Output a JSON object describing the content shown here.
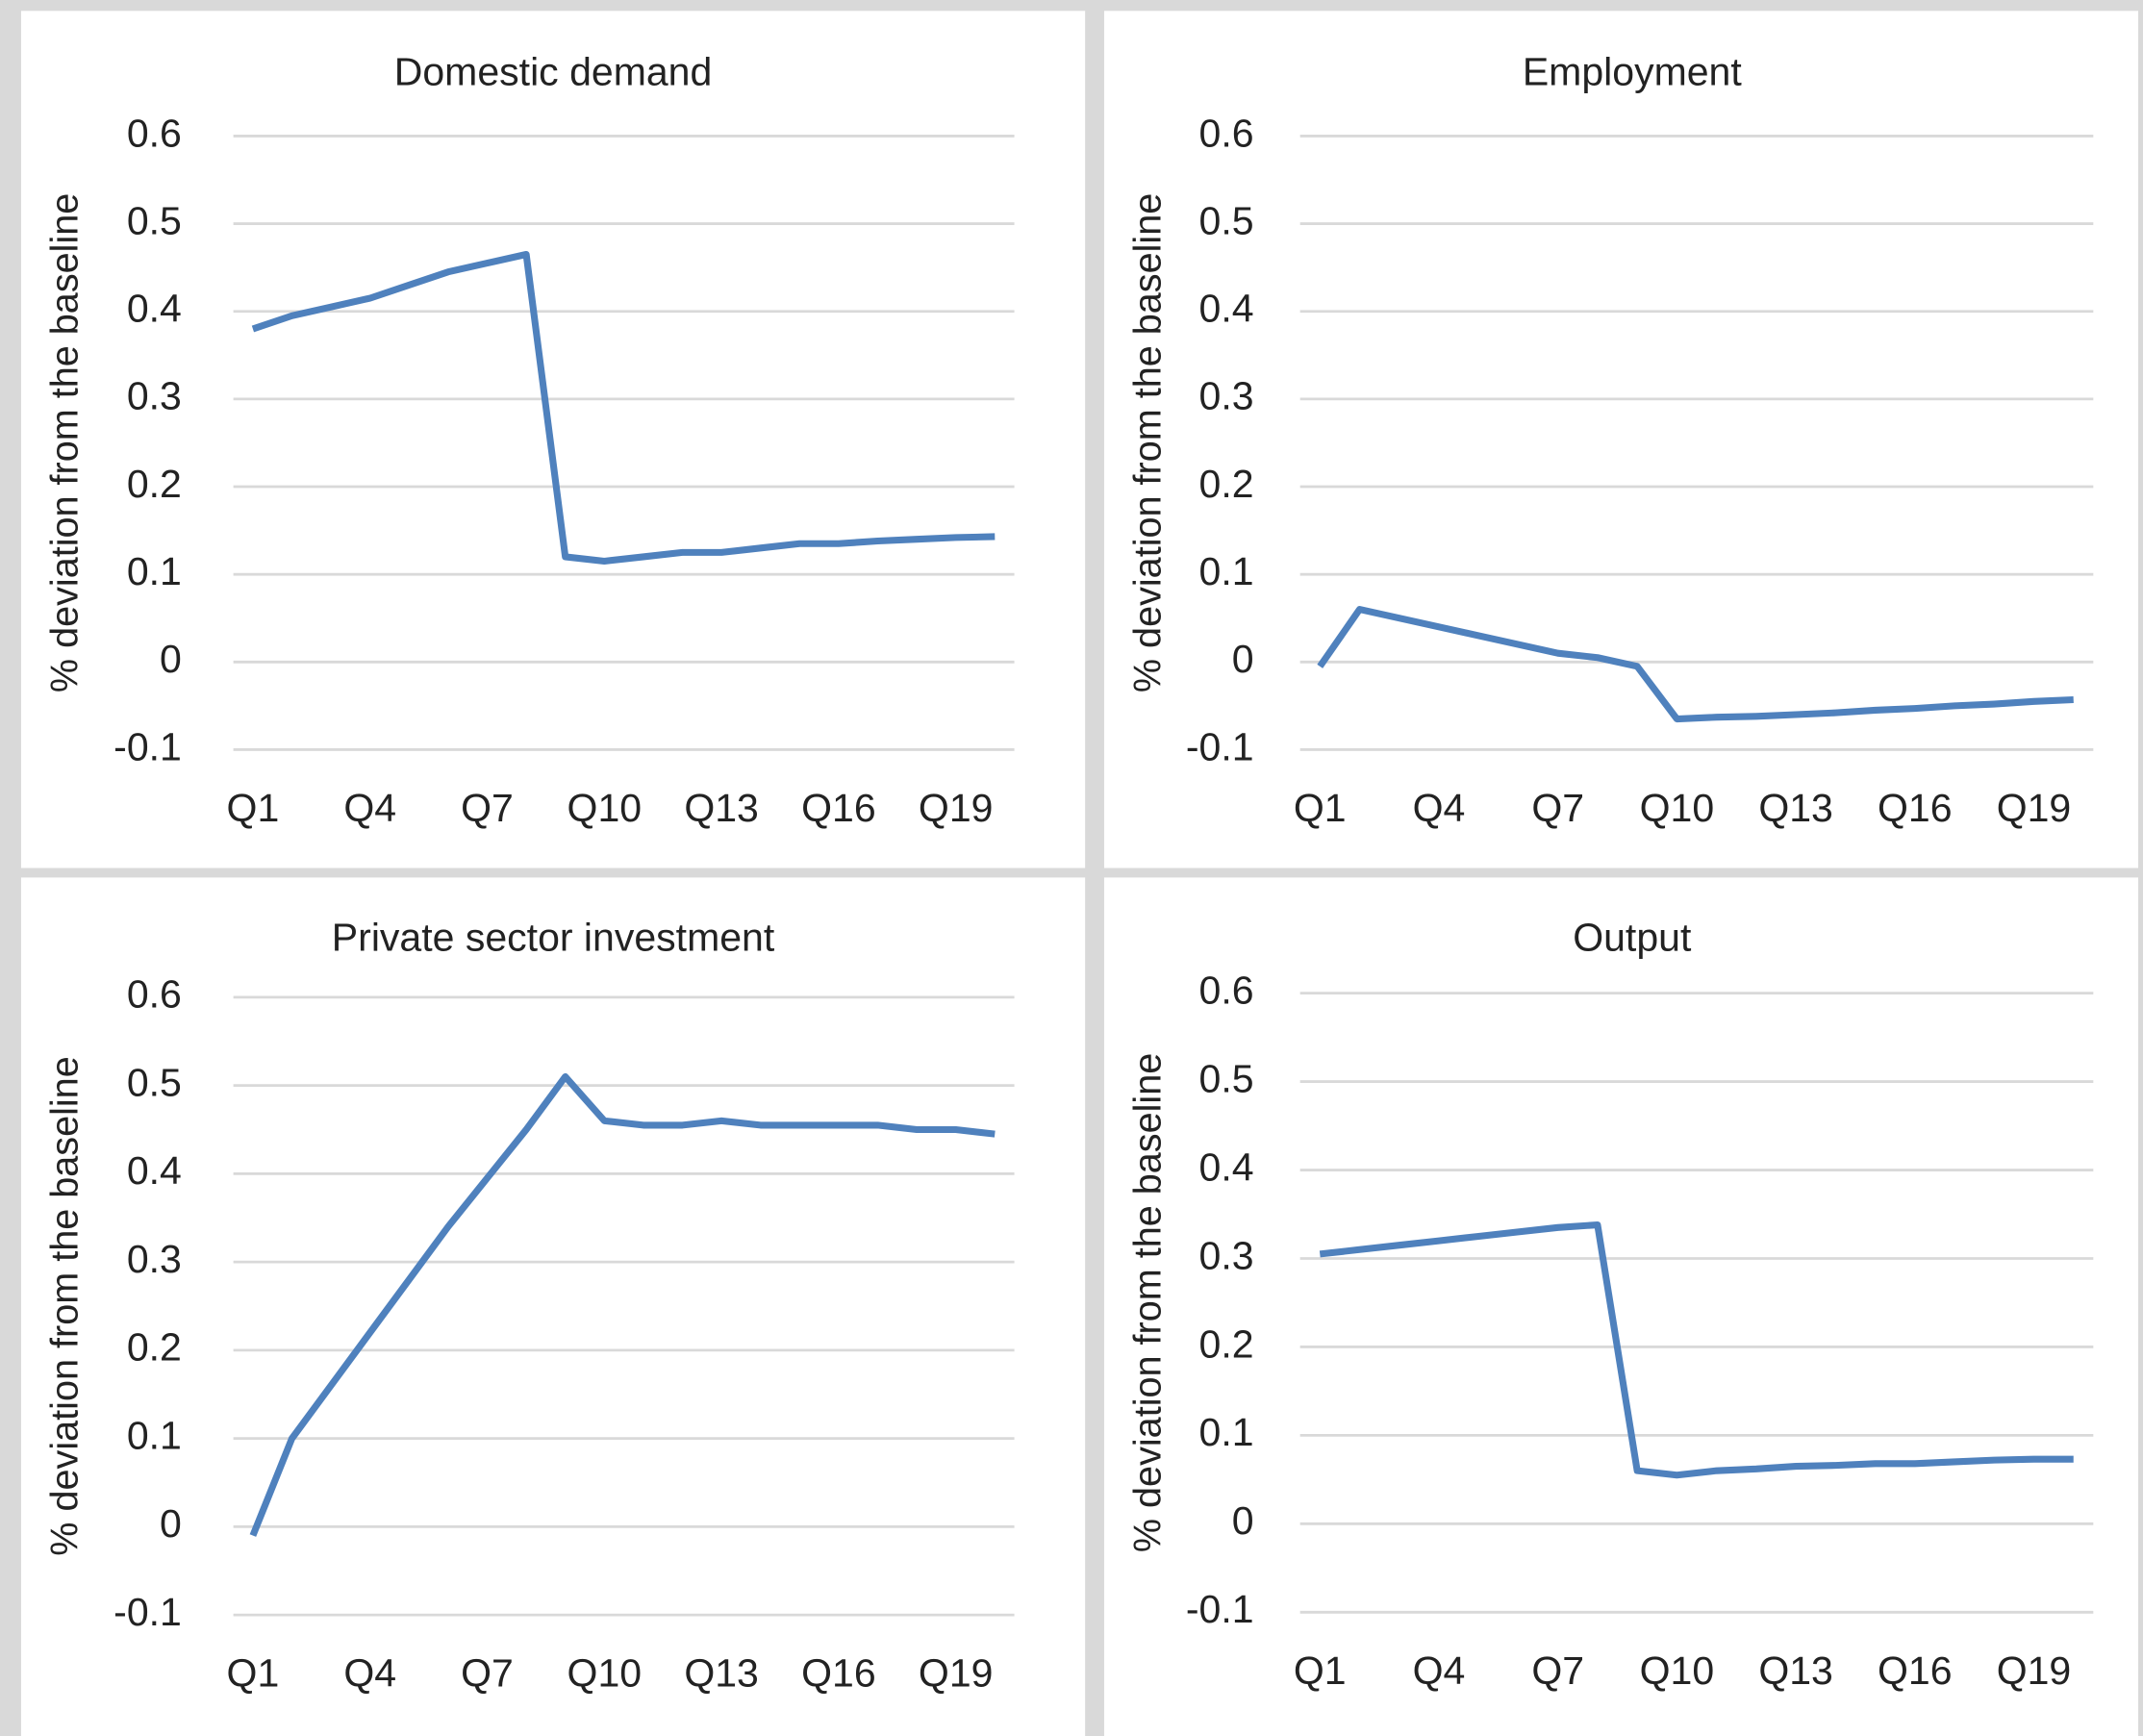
{
  "chart_data": [
    {
      "type": "line",
      "title": "Domestic demand",
      "y_label": "% deviation from the baseline",
      "categories": [
        "Q1",
        null,
        null,
        "Q4",
        null,
        null,
        "Q7",
        null,
        null,
        "Q10",
        null,
        null,
        "Q13",
        null,
        null,
        "Q16",
        null,
        null,
        "Q19",
        null
      ],
      "series": [
        {
          "color": "#4f81bd",
          "values": [
            0.38,
            0.395,
            0.405,
            0.415,
            0.43,
            0.445,
            0.455,
            0.465,
            0.12,
            0.115,
            0.12,
            0.125,
            0.125,
            0.13,
            0.135,
            0.135,
            0.138,
            0.14,
            0.142,
            0.143
          ]
        }
      ],
      "ylim": [
        -0.1,
        0.6
      ],
      "yticks": [
        -0.1,
        0,
        0.1,
        0.2,
        0.3,
        0.4,
        0.5,
        0.6
      ],
      "grid": true
    },
    {
      "type": "line",
      "title": "Employment",
      "y_label": "% deviation from the baseline",
      "categories": [
        "Q1",
        null,
        null,
        "Q4",
        null,
        null,
        "Q7",
        null,
        null,
        "Q10",
        null,
        null,
        "Q13",
        null,
        null,
        "Q16",
        null,
        null,
        "Q19",
        null
      ],
      "series": [
        {
          "color": "#4f81bd",
          "values": [
            -0.005,
            0.06,
            0.05,
            0.04,
            0.03,
            0.02,
            0.01,
            0.005,
            -0.005,
            -0.065,
            -0.063,
            -0.062,
            -0.06,
            -0.058,
            -0.055,
            -0.053,
            -0.05,
            -0.048,
            -0.045,
            -0.043
          ]
        }
      ],
      "ylim": [
        -0.1,
        0.6
      ],
      "yticks": [
        -0.1,
        0,
        0.1,
        0.2,
        0.3,
        0.4,
        0.5,
        0.6
      ],
      "grid": true
    },
    {
      "type": "line",
      "title": "Private sector investment",
      "y_label": "% deviation from the baseline",
      "categories": [
        "Q1",
        null,
        null,
        "Q4",
        null,
        null,
        "Q7",
        null,
        null,
        "Q10",
        null,
        null,
        "Q13",
        null,
        null,
        "Q16",
        null,
        null,
        "Q19",
        null
      ],
      "series": [
        {
          "color": "#4f81bd",
          "values": [
            -0.01,
            0.1,
            0.16,
            0.22,
            0.28,
            0.34,
            0.395,
            0.45,
            0.51,
            0.46,
            0.455,
            0.455,
            0.46,
            0.455,
            0.455,
            0.455,
            0.455,
            0.45,
            0.45,
            0.445
          ]
        }
      ],
      "ylim": [
        -0.1,
        0.6
      ],
      "yticks": [
        -0.1,
        0,
        0.1,
        0.2,
        0.3,
        0.4,
        0.5,
        0.6
      ],
      "grid": true
    },
    {
      "type": "line",
      "title": "Output",
      "y_label": "% deviation from the baseline",
      "categories": [
        "Q1",
        null,
        null,
        "Q4",
        null,
        null,
        "Q7",
        null,
        null,
        "Q10",
        null,
        null,
        "Q13",
        null,
        null,
        "Q16",
        null,
        null,
        "Q19",
        null
      ],
      "series": [
        {
          "color": "#4f81bd",
          "values": [
            0.305,
            0.31,
            0.315,
            0.32,
            0.325,
            0.33,
            0.335,
            0.338,
            0.06,
            0.055,
            0.06,
            0.062,
            0.065,
            0.066,
            0.068,
            0.068,
            0.07,
            0.072,
            0.073,
            0.073
          ]
        }
      ],
      "ylim": [
        -0.1,
        0.6
      ],
      "yticks": [
        -0.1,
        0,
        0.1,
        0.2,
        0.3,
        0.4,
        0.5,
        0.6
      ],
      "grid": true
    }
  ]
}
